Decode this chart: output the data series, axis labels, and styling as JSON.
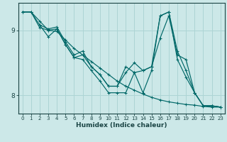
{
  "xlabel": "Humidex (Indice chaleur)",
  "ylabel": "",
  "bg_color": "#cce8e8",
  "grid_color": "#add4d4",
  "line_color": "#006868",
  "xlim": [
    -0.5,
    23.5
  ],
  "ylim": [
    7.72,
    9.42
  ],
  "yticks": [
    8,
    9
  ],
  "xticks": [
    0,
    1,
    2,
    3,
    4,
    5,
    6,
    7,
    8,
    9,
    10,
    11,
    12,
    13,
    14,
    15,
    16,
    17,
    18,
    19,
    20,
    21,
    22,
    23
  ],
  "lines": [
    {
      "x": [
        0,
        1,
        2,
        3,
        4,
        5,
        6,
        7,
        8,
        9,
        10,
        11,
        12,
        13,
        14,
        15,
        16,
        17,
        18,
        19,
        20,
        21,
        22,
        23
      ],
      "y": [
        9.28,
        9.28,
        9.14,
        9.0,
        8.98,
        8.85,
        8.72,
        8.62,
        8.52,
        8.42,
        8.32,
        8.22,
        8.14,
        8.08,
        8.02,
        7.97,
        7.93,
        7.9,
        7.88,
        7.86,
        7.85,
        7.83,
        7.82,
        7.82
      ]
    },
    {
      "x": [
        0,
        1,
        2,
        3,
        4,
        5,
        6,
        7,
        8,
        9,
        10,
        11,
        12,
        13,
        14,
        15,
        16,
        17,
        18,
        19,
        20,
        21,
        22,
        23
      ],
      "y": [
        9.28,
        9.28,
        9.08,
        9.02,
        9.05,
        8.82,
        8.62,
        8.68,
        8.44,
        8.32,
        8.14,
        8.14,
        8.44,
        8.35,
        8.38,
        8.44,
        9.22,
        9.28,
        8.68,
        8.38,
        8.04,
        7.84,
        7.84,
        7.82
      ]
    },
    {
      "x": [
        0,
        1,
        2,
        3,
        4,
        5,
        6,
        7,
        8,
        9,
        10,
        11,
        12,
        13,
        14,
        15,
        16,
        17,
        18,
        19,
        20,
        21,
        22,
        23
      ],
      "y": [
        9.28,
        9.28,
        9.04,
        9.0,
        9.02,
        8.78,
        8.58,
        8.62,
        8.44,
        8.32,
        8.14,
        8.14,
        8.35,
        8.5,
        8.38,
        8.44,
        8.88,
        9.22,
        8.62,
        8.55,
        8.04,
        7.84,
        7.84,
        7.82
      ]
    },
    {
      "x": [
        2,
        3,
        4,
        5,
        6,
        7,
        8,
        9,
        10,
        11,
        12,
        13,
        14,
        15,
        16,
        17,
        18,
        19,
        20,
        21,
        22,
        23
      ],
      "y": [
        9.08,
        8.9,
        9.02,
        8.78,
        8.58,
        8.55,
        8.38,
        8.22,
        8.04,
        8.04,
        8.04,
        8.35,
        8.04,
        8.38,
        9.22,
        9.28,
        8.55,
        8.28,
        8.04,
        7.84,
        7.84,
        7.82
      ]
    }
  ]
}
